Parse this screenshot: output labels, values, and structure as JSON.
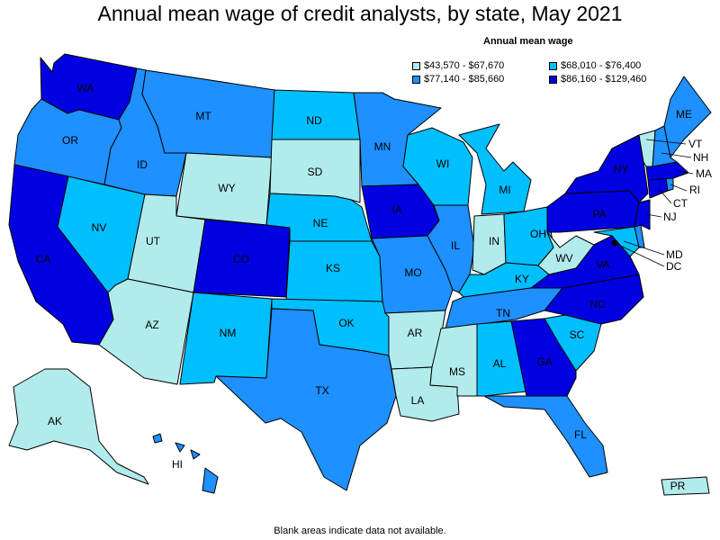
{
  "title": "Annual mean wage of credit analysts, by state, May 2021",
  "legend": {
    "title": "Annual mean wage",
    "items": [
      {
        "label": "$43,570 - $67,670",
        "color": "#b2ebec"
      },
      {
        "label": "$68,010 - $76,400",
        "color": "#00bfff"
      },
      {
        "label": "$77,140 - $85,660",
        "color": "#1e90ff"
      },
      {
        "label": "$86,160 - $129,460",
        "color": "#0000e0"
      }
    ]
  },
  "footnote": "Blank areas indicate data not available.",
  "classes": {
    "WA": 3,
    "OR": 2,
    "CA": 3,
    "NV": 1,
    "ID": 2,
    "MT": 2,
    "WY": 0,
    "UT": 0,
    "AZ": 0,
    "CO": 3,
    "NM": 1,
    "ND": 1,
    "SD": 0,
    "NE": 1,
    "KS": 1,
    "OK": 1,
    "TX": 2,
    "MN": 2,
    "IA": 3,
    "MO": 2,
    "AR": 0,
    "LA": 0,
    "WI": 1,
    "IL": 2,
    "MI": 1,
    "IN": 0,
    "OH": 1,
    "KY": 1,
    "TN": 2,
    "MS": 0,
    "AL": 1,
    "GA": 3,
    "FL": 2,
    "SC": 1,
    "NC": 3,
    "VA": 3,
    "WV": 0,
    "PA": 3,
    "NY": 3,
    "ME": 2,
    "VT": 0,
    "NH": 2,
    "MA": 3,
    "CT": 3,
    "RI": 2,
    "NJ": 3,
    "DE": 2,
    "MD": 1,
    "DC": 3,
    "AK": 0,
    "HI": 2,
    "PR": 0
  },
  "labels": {
    "WA": "WA",
    "OR": "OR",
    "CA": "CA",
    "NV": "NV",
    "ID": "ID",
    "MT": "MT",
    "WY": "WY",
    "UT": "UT",
    "AZ": "AZ",
    "CO": "CO",
    "NM": "NM",
    "ND": "ND",
    "SD": "SD",
    "NE": "NE",
    "KS": "KS",
    "OK": "OK",
    "TX": "TX",
    "MN": "MN",
    "IA": "IA",
    "MO": "MO",
    "AR": "AR",
    "LA": "LA",
    "WI": "WI",
    "IL": "IL",
    "MI": "MI",
    "IN": "IN",
    "OH": "OH",
    "KY": "KY",
    "TN": "TN",
    "MS": "MS",
    "AL": "AL",
    "GA": "GA",
    "FL": "FL",
    "SC": "SC",
    "NC": "NC",
    "VA": "VA",
    "WV": "WV",
    "PA": "PA",
    "NY": "NY",
    "ME": "ME",
    "VT": "VT",
    "NH": "NH",
    "MA": "MA",
    "CT": "CT",
    "RI": "RI",
    "NJ": "NJ",
    "MD": "MD",
    "DC": "DC",
    "AK": "AK",
    "HI": "HI",
    "PR": "PR"
  }
}
